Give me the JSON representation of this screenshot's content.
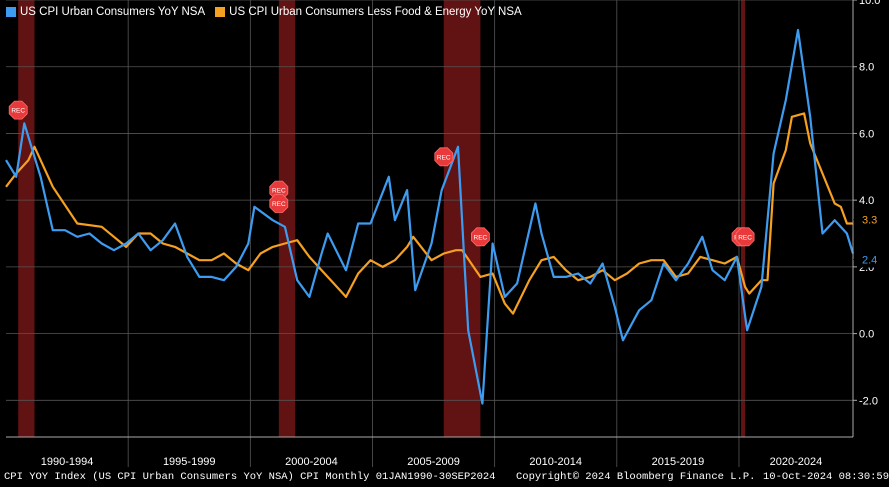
{
  "footer": {
    "source": "CPI YOY Index (US CPI Urban Consumers YoY NSA) CPI  Monthly 01JAN1990-30SEP2024",
    "copyright": "Copyright© 2024 Bloomberg Finance L.P.",
    "timestamp": "10-Oct-2024 08:30:59"
  },
  "colors": {
    "background": "#000000",
    "cpi": "#3d9cf0",
    "core": "#f5a020",
    "recession": "#6b1414",
    "grid": "#555555"
  },
  "chart_data": {
    "type": "line",
    "x_tick_labels": [
      "1990-1994",
      "1995-1999",
      "2000-2004",
      "2005-2009",
      "2010-2014",
      "2015-2019",
      "2020-2024"
    ],
    "y_ticks": [
      "10.0",
      "8.0",
      "6.0",
      "4.0",
      "2.0",
      "0.0",
      "-2.0"
    ],
    "ylim": [
      -3.1,
      10.0
    ],
    "xlim": [
      "1990-01",
      "2024-09"
    ],
    "grid": true,
    "legend_position": "top-left",
    "recession_label": "REC",
    "recessions": [
      [
        "1990-07",
        "1991-03"
      ],
      [
        "2001-03",
        "2001-11"
      ],
      [
        "2007-12",
        "2009-06"
      ],
      [
        "2020-02",
        "2020-04"
      ]
    ],
    "series": [
      {
        "name": "US CPI Urban Consumers YoY NSA",
        "last_value": "2.4",
        "x": [
          "1990-01",
          "1990-06",
          "1990-10",
          "1991-01",
          "1991-06",
          "1991-12",
          "1992-06",
          "1992-12",
          "1993-06",
          "1993-12",
          "1994-06",
          "1994-12",
          "1995-06",
          "1995-12",
          "1996-06",
          "1996-12",
          "1997-06",
          "1997-12",
          "1998-06",
          "1998-12",
          "1999-06",
          "1999-12",
          "2000-03",
          "2000-12",
          "2001-06",
          "2001-12",
          "2002-06",
          "2002-12",
          "2003-03",
          "2003-12",
          "2004-06",
          "2004-12",
          "2005-09",
          "2005-12",
          "2006-06",
          "2006-10",
          "2007-06",
          "2007-11",
          "2008-07",
          "2008-12",
          "2009-07",
          "2009-12",
          "2010-06",
          "2010-12",
          "2011-09",
          "2011-12",
          "2012-06",
          "2012-12",
          "2013-06",
          "2013-12",
          "2014-06",
          "2014-12",
          "2015-04",
          "2015-12",
          "2016-06",
          "2016-12",
          "2017-06",
          "2017-12",
          "2018-07",
          "2018-12",
          "2019-06",
          "2019-12",
          "2020-05",
          "2020-12",
          "2021-06",
          "2021-12",
          "2022-06",
          "2022-12",
          "2023-06",
          "2023-12",
          "2024-06",
          "2024-09"
        ],
        "values": [
          5.2,
          4.7,
          6.3,
          5.7,
          4.7,
          3.1,
          3.1,
          2.9,
          3.0,
          2.7,
          2.5,
          2.7,
          3.0,
          2.5,
          2.8,
          3.3,
          2.3,
          1.7,
          1.7,
          1.6,
          2.0,
          2.7,
          3.8,
          3.4,
          3.2,
          1.6,
          1.1,
          2.4,
          3.0,
          1.9,
          3.3,
          3.3,
          4.7,
          3.4,
          4.3,
          1.3,
          2.7,
          4.3,
          5.6,
          0.1,
          -2.1,
          2.7,
          1.1,
          1.5,
          3.9,
          3.0,
          1.7,
          1.7,
          1.8,
          1.5,
          2.1,
          0.8,
          -0.2,
          0.7,
          1.0,
          2.1,
          1.6,
          2.1,
          2.9,
          1.9,
          1.6,
          2.3,
          0.1,
          1.4,
          5.4,
          7.0,
          9.1,
          6.5,
          3.0,
          3.4,
          3.0,
          2.4
        ]
      },
      {
        "name": "US CPI Urban Consumers Less Food & Energy YoY NSA",
        "last_value": "3.3",
        "x": [
          "1990-01",
          "1990-06",
          "1990-12",
          "1991-03",
          "1991-12",
          "1992-12",
          "1993-12",
          "1994-06",
          "1994-12",
          "1995-06",
          "1995-12",
          "1996-06",
          "1996-12",
          "1997-06",
          "1997-12",
          "1998-06",
          "1998-12",
          "1999-06",
          "1999-12",
          "2000-06",
          "2000-12",
          "2001-06",
          "2001-12",
          "2002-06",
          "2002-12",
          "2003-06",
          "2003-12",
          "2004-06",
          "2004-12",
          "2005-06",
          "2005-12",
          "2006-06",
          "2006-09",
          "2007-06",
          "2007-12",
          "2008-06",
          "2008-09",
          "2009-06",
          "2009-12",
          "2010-06",
          "2010-10",
          "2011-06",
          "2011-12",
          "2012-06",
          "2012-12",
          "2013-06",
          "2013-12",
          "2014-06",
          "2014-12",
          "2015-06",
          "2015-12",
          "2016-06",
          "2016-12",
          "2017-06",
          "2017-12",
          "2018-06",
          "2018-12",
          "2019-06",
          "2019-12",
          "2020-04",
          "2020-06",
          "2020-12",
          "2021-03",
          "2021-06",
          "2021-12",
          "2022-03",
          "2022-09",
          "2022-12",
          "2023-06",
          "2023-12",
          "2024-03",
          "2024-06",
          "2024-09"
        ],
        "values": [
          4.4,
          4.8,
          5.2,
          5.6,
          4.4,
          3.3,
          3.2,
          2.9,
          2.6,
          3.0,
          3.0,
          2.7,
          2.6,
          2.4,
          2.2,
          2.2,
          2.4,
          2.1,
          1.9,
          2.4,
          2.6,
          2.7,
          2.8,
          2.3,
          1.9,
          1.5,
          1.1,
          1.8,
          2.2,
          2.0,
          2.2,
          2.6,
          2.9,
          2.2,
          2.4,
          2.5,
          2.5,
          1.7,
          1.8,
          0.9,
          0.6,
          1.6,
          2.2,
          2.3,
          1.9,
          1.6,
          1.7,
          1.9,
          1.6,
          1.8,
          2.1,
          2.2,
          2.2,
          1.7,
          1.8,
          2.3,
          2.2,
          2.1,
          2.3,
          1.4,
          1.2,
          1.6,
          1.6,
          4.5,
          5.5,
          6.5,
          6.6,
          5.7,
          4.8,
          3.9,
          3.8,
          3.3,
          3.3
        ]
      }
    ]
  }
}
